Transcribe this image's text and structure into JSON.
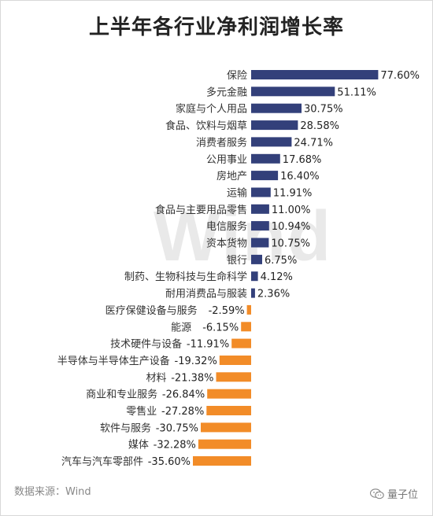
{
  "title": "上半年各行业净利润增长率",
  "source": "数据来源：Wind",
  "watermark": "Wind",
  "brand": {
    "name": "量子位",
    "icon": "wechat-icon"
  },
  "chart_data": {
    "type": "bar",
    "orientation": "horizontal",
    "title": "上半年各行业净利润增长率",
    "unit": "%",
    "colors": {
      "positive": "#33407a",
      "negative": "#f28c28"
    },
    "categories": [
      "保险",
      "多元金融",
      "家庭与个人用品",
      "食品、饮料与烟草",
      "消费者服务",
      "公用事业",
      "房地产",
      "运输",
      "食品与主要用品零售",
      "电信服务",
      "资本货物",
      "银行",
      "制药、生物科技与生命科学",
      "耐用消费品与服装",
      "医疗保健设备与服务",
      "能源",
      "技术硬件与设备",
      "半导体与半导体生产设备",
      "材料",
      "商业和专业服务",
      "零售业",
      "软件与服务",
      "媒体",
      "汽车与汽车零部件"
    ],
    "values": [
      77.6,
      51.11,
      30.75,
      28.58,
      24.71,
      17.68,
      16.4,
      11.91,
      11.0,
      10.94,
      10.75,
      6.75,
      4.12,
      2.36,
      -2.59,
      -6.15,
      -11.91,
      -19.32,
      -21.38,
      -26.84,
      -27.28,
      -30.75,
      -32.28,
      -35.6
    ],
    "value_labels": [
      "77.60%",
      "51.11%",
      "30.75%",
      "28.58%",
      "24.71%",
      "17.68%",
      "16.40%",
      "11.91%",
      "11.00%",
      "10.94%",
      "10.75%",
      "6.75%",
      "4.12%",
      "2.36%",
      "-2.59%",
      "-6.15%",
      "-11.91%",
      "-19.32%",
      "-21.38%",
      "-26.84%",
      "-27.28%",
      "-30.75%",
      "-32.28%",
      "-35.60%"
    ],
    "xlim": [
      -35.6,
      77.6
    ],
    "grid": false,
    "legend": "none"
  }
}
